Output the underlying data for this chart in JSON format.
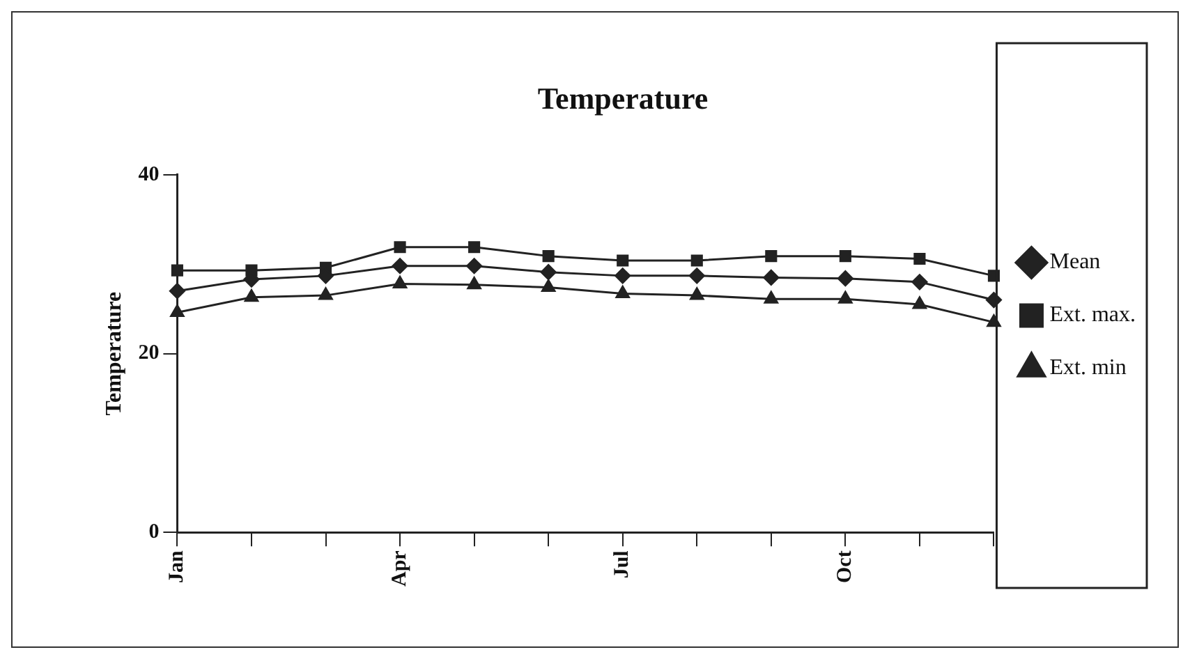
{
  "chart_data": {
    "type": "line",
    "title": "Temperature",
    "ylabel": "Temperature",
    "categories": [
      "Jan",
      null,
      null,
      "Apr",
      null,
      null,
      "Jul",
      null,
      null,
      "Oct",
      null,
      null
    ],
    "series": [
      {
        "name": "Mean",
        "color": "#222222",
        "marker": "diamond",
        "values": [
          27,
          28.3,
          28.7,
          29.8,
          29.8,
          29.1,
          28.7,
          28.7,
          28.5,
          28.4,
          28,
          26
        ]
      },
      {
        "name": "Ext. max.",
        "color": "#222222",
        "marker": "square",
        "values": [
          29.3,
          29.3,
          29.6,
          31.9,
          31.9,
          30.9,
          30.4,
          30.4,
          30.9,
          30.9,
          30.6,
          28.7
        ]
      },
      {
        "name": "Ext. min",
        "color": "#222222",
        "marker": "triangle",
        "values": [
          24.6,
          26.3,
          26.5,
          27.8,
          27.7,
          27.4,
          26.7,
          26.5,
          26.1,
          26.1,
          25.5,
          23.5
        ]
      }
    ],
    "ylim": [
      0,
      40
    ],
    "yticks": [
      0,
      20,
      40
    ],
    "grid": false,
    "legend": "right",
    "line_style": "solid"
  }
}
